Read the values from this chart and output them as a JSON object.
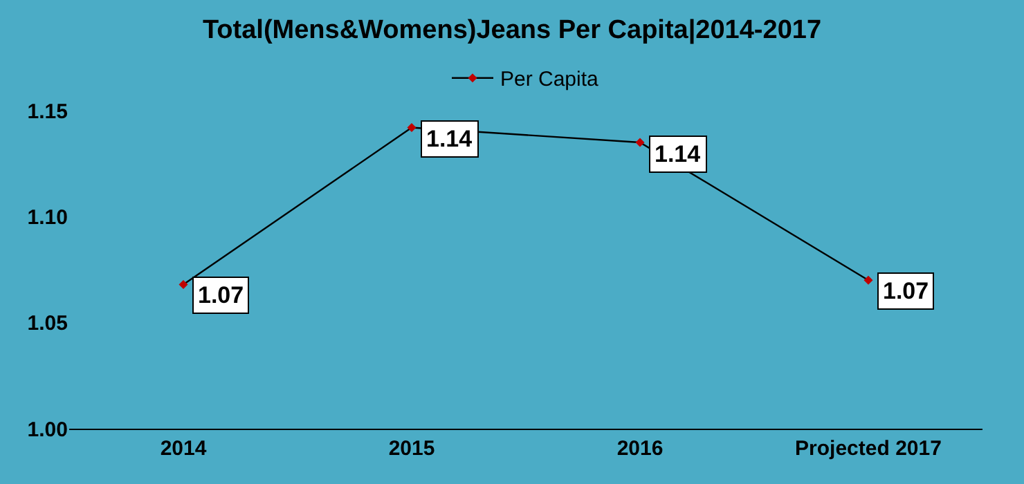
{
  "chart_data": {
    "type": "line",
    "title": "Total(Mens&Womens)Jeans Per Capita|2014-2017",
    "categories": [
      "2014",
      "2015",
      "2016",
      "Projected 2017"
    ],
    "series": [
      {
        "name": "Per Capita",
        "color": "#000000",
        "values": [
          1.068,
          1.142,
          1.135,
          1.07
        ],
        "value_labels": [
          "1.07",
          "1.14",
          "1.14",
          "1.07"
        ]
      }
    ],
    "ylim": [
      1.0,
      1.15
    ],
    "yticks": [
      {
        "value": 1.0,
        "label": "1.00"
      },
      {
        "value": 1.05,
        "label": "1.05"
      },
      {
        "value": 1.1,
        "label": "1.10"
      },
      {
        "value": 1.15,
        "label": "1.15"
      }
    ],
    "grid": false,
    "legend": "top",
    "marker": "diamond",
    "line_style": "solid"
  }
}
